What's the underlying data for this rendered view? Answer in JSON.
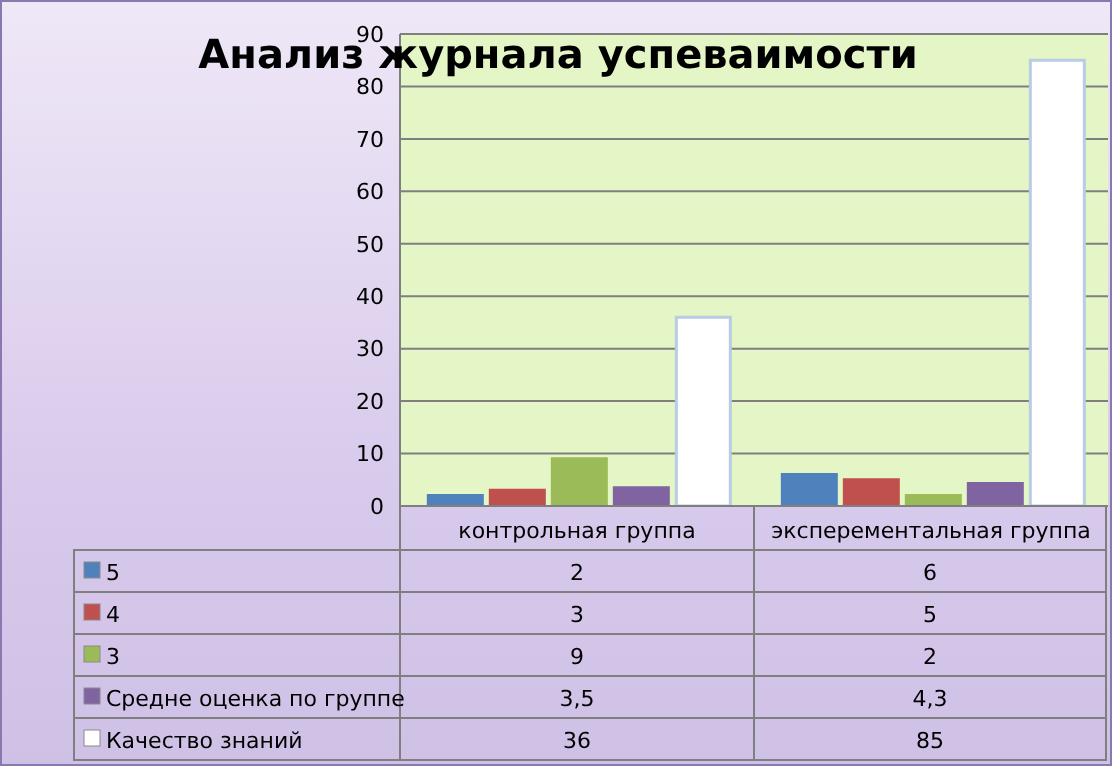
{
  "chart_data": {
    "type": "bar",
    "title": "Анализ журнала успеваимости",
    "categories": [
      "контрольная группа",
      "эксперементальная группа"
    ],
    "series": [
      {
        "name": "5",
        "color": "#4f81bd",
        "values": [
          2,
          6
        ],
        "value_labels": [
          "2",
          "6"
        ]
      },
      {
        "name": "4",
        "color": "#c0504d",
        "values": [
          3,
          5
        ],
        "value_labels": [
          "3",
          "5"
        ]
      },
      {
        "name": "3",
        "color": "#9bbb59",
        "values": [
          9,
          2
        ],
        "value_labels": [
          "9",
          "2"
        ]
      },
      {
        "name": "Средне оценка по группе",
        "color": "#8064a2",
        "values": [
          3.5,
          4.3
        ],
        "value_labels": [
          "3,5",
          "4,3"
        ]
      },
      {
        "name": "Качество знаний",
        "color": "#ffffff",
        "values": [
          36,
          85
        ],
        "value_labels": [
          "36",
          "85"
        ]
      }
    ],
    "ylim": [
      0,
      90
    ],
    "yticks": [
      0,
      10,
      20,
      30,
      40,
      50,
      60,
      70,
      80,
      90
    ],
    "grid": "y",
    "legend": "bottom"
  }
}
